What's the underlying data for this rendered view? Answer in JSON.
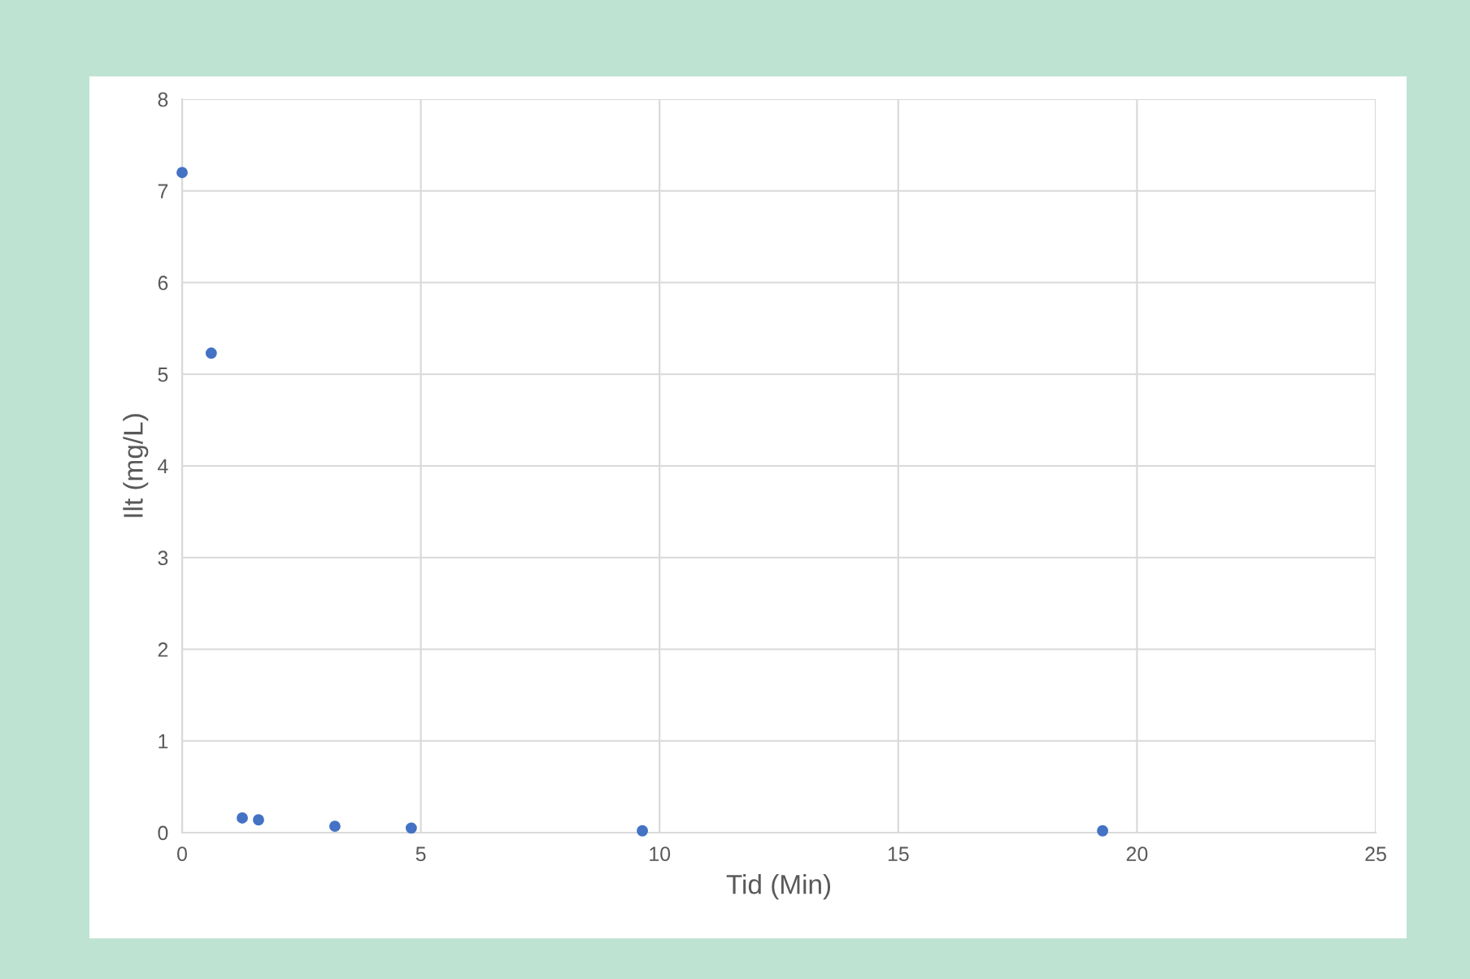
{
  "chart_data": {
    "type": "scatter",
    "xlabel": "Tid (Min)",
    "ylabel": "Ilt (mg/L)",
    "x": [
      0,
      0.61,
      1.26,
      1.6,
      3.2,
      4.8,
      9.64,
      19.28
    ],
    "series": [
      {
        "color": "#4472c4",
        "values": [
          7.2,
          5.23,
          0.16,
          0.14,
          0.07,
          0.05,
          0.02,
          0.02
        ]
      }
    ],
    "xlim": [
      0,
      25
    ],
    "xticks": [
      0,
      5,
      10,
      15,
      20,
      25
    ],
    "ylim": [
      0,
      8
    ],
    "yticks": [
      0,
      1,
      2,
      3,
      4,
      5,
      6,
      7,
      8
    ],
    "grid": true,
    "marker": "circle"
  }
}
